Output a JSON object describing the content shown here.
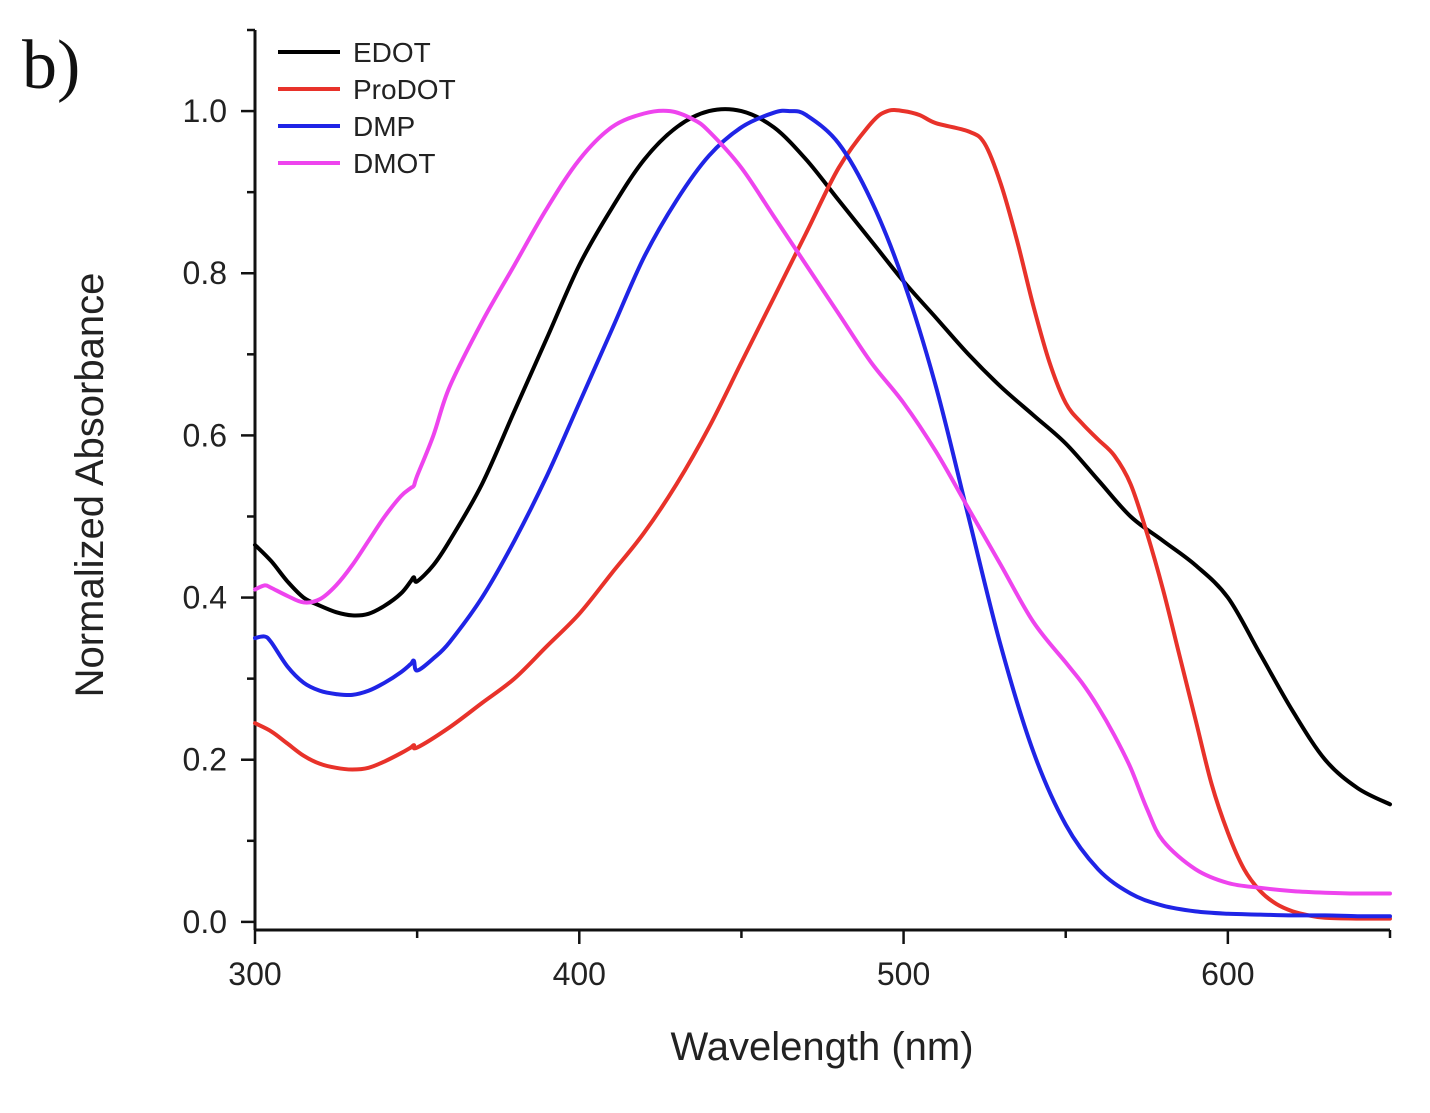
{
  "panel_label": "b)",
  "chart_data": {
    "type": "line",
    "title": "",
    "xlabel": "Wavelength (nm)",
    "ylabel": "Normalized Absorbance",
    "xlim": [
      300,
      650
    ],
    "ylim": [
      -0.01,
      1.1
    ],
    "xticks": [
      300,
      400,
      500,
      600
    ],
    "xtick_labels": [
      "300",
      "400",
      "500",
      "600"
    ],
    "yticks": [
      0.0,
      0.2,
      0.4,
      0.6,
      0.8,
      1.0
    ],
    "ytick_labels": [
      "0.0",
      "0.2",
      "0.4",
      "0.6",
      "0.8",
      "1.0"
    ],
    "grid": false,
    "legend_position": "top-left",
    "series": [
      {
        "name": "EDOT",
        "color": "#000000",
        "x": [
          300,
          305,
          310,
          315,
          320,
          325,
          330,
          335,
          340,
          345,
          348,
          349,
          350,
          355,
          360,
          370,
          380,
          390,
          400,
          410,
          420,
          430,
          440,
          450,
          460,
          470,
          480,
          490,
          500,
          510,
          520,
          530,
          540,
          550,
          560,
          570,
          580,
          590,
          600,
          610,
          620,
          630,
          640,
          650
        ],
        "y": [
          0.465,
          0.445,
          0.42,
          0.4,
          0.39,
          0.382,
          0.378,
          0.38,
          0.39,
          0.405,
          0.42,
          0.425,
          0.42,
          0.44,
          0.47,
          0.54,
          0.63,
          0.72,
          0.81,
          0.88,
          0.94,
          0.98,
          1.0,
          1.0,
          0.98,
          0.94,
          0.89,
          0.84,
          0.79,
          0.745,
          0.7,
          0.66,
          0.625,
          0.59,
          0.545,
          0.5,
          0.47,
          0.44,
          0.4,
          0.33,
          0.26,
          0.2,
          0.165,
          0.145
        ]
      },
      {
        "name": "ProDOT",
        "color": "#e8322a",
        "x": [
          300,
          305,
          310,
          315,
          320,
          325,
          330,
          335,
          340,
          345,
          348,
          349,
          350,
          360,
          370,
          380,
          390,
          400,
          410,
          420,
          430,
          440,
          450,
          460,
          470,
          480,
          490,
          495,
          500,
          505,
          510,
          520,
          525,
          530,
          535,
          540,
          545,
          550,
          555,
          560,
          565,
          570,
          575,
          580,
          585,
          590,
          595,
          600,
          605,
          610,
          615,
          620,
          625,
          630,
          640,
          650
        ],
        "y": [
          0.245,
          0.235,
          0.22,
          0.205,
          0.195,
          0.19,
          0.188,
          0.19,
          0.198,
          0.208,
          0.215,
          0.218,
          0.215,
          0.24,
          0.27,
          0.3,
          0.34,
          0.38,
          0.43,
          0.48,
          0.54,
          0.61,
          0.69,
          0.77,
          0.85,
          0.93,
          0.985,
          1.0,
          1.0,
          0.995,
          0.985,
          0.975,
          0.96,
          0.91,
          0.84,
          0.76,
          0.69,
          0.64,
          0.615,
          0.595,
          0.575,
          0.54,
          0.48,
          0.41,
          0.33,
          0.25,
          0.17,
          0.11,
          0.065,
          0.038,
          0.022,
          0.013,
          0.008,
          0.005,
          0.004,
          0.004
        ]
      },
      {
        "name": "DMP",
        "color": "#1f24e6",
        "x": [
          300,
          303,
          305,
          310,
          315,
          320,
          325,
          330,
          335,
          340,
          345,
          348,
          349,
          350,
          355,
          360,
          370,
          380,
          390,
          400,
          410,
          420,
          430,
          440,
          450,
          460,
          465,
          470,
          480,
          490,
          500,
          510,
          520,
          530,
          540,
          550,
          560,
          570,
          580,
          590,
          600,
          610,
          620,
          630,
          640,
          650
        ],
        "y": [
          0.35,
          0.352,
          0.345,
          0.315,
          0.295,
          0.285,
          0.281,
          0.28,
          0.285,
          0.295,
          0.308,
          0.318,
          0.322,
          0.31,
          0.325,
          0.345,
          0.4,
          0.47,
          0.55,
          0.64,
          0.73,
          0.82,
          0.89,
          0.945,
          0.98,
          0.998,
          1.0,
          0.995,
          0.96,
          0.89,
          0.79,
          0.66,
          0.5,
          0.34,
          0.21,
          0.12,
          0.065,
          0.035,
          0.02,
          0.013,
          0.01,
          0.009,
          0.008,
          0.008,
          0.007,
          0.007
        ]
      },
      {
        "name": "DMOT",
        "color": "#ee44ee",
        "x": [
          300,
          303,
          305,
          310,
          315,
          320,
          325,
          330,
          335,
          340,
          345,
          348,
          349,
          350,
          355,
          360,
          370,
          380,
          390,
          400,
          410,
          420,
          428,
          435,
          440,
          450,
          460,
          470,
          480,
          490,
          500,
          510,
          520,
          530,
          540,
          550,
          555,
          560,
          565,
          570,
          575,
          580,
          590,
          600,
          610,
          620,
          630,
          640,
          650
        ],
        "y": [
          0.41,
          0.415,
          0.412,
          0.402,
          0.394,
          0.398,
          0.415,
          0.44,
          0.47,
          0.5,
          0.525,
          0.535,
          0.538,
          0.55,
          0.6,
          0.66,
          0.74,
          0.81,
          0.88,
          0.94,
          0.98,
          0.997,
          1.0,
          0.99,
          0.975,
          0.93,
          0.87,
          0.81,
          0.75,
          0.69,
          0.64,
          0.58,
          0.51,
          0.44,
          0.37,
          0.32,
          0.295,
          0.265,
          0.23,
          0.19,
          0.14,
          0.1,
          0.065,
          0.048,
          0.042,
          0.038,
          0.036,
          0.035,
          0.035
        ]
      }
    ]
  }
}
